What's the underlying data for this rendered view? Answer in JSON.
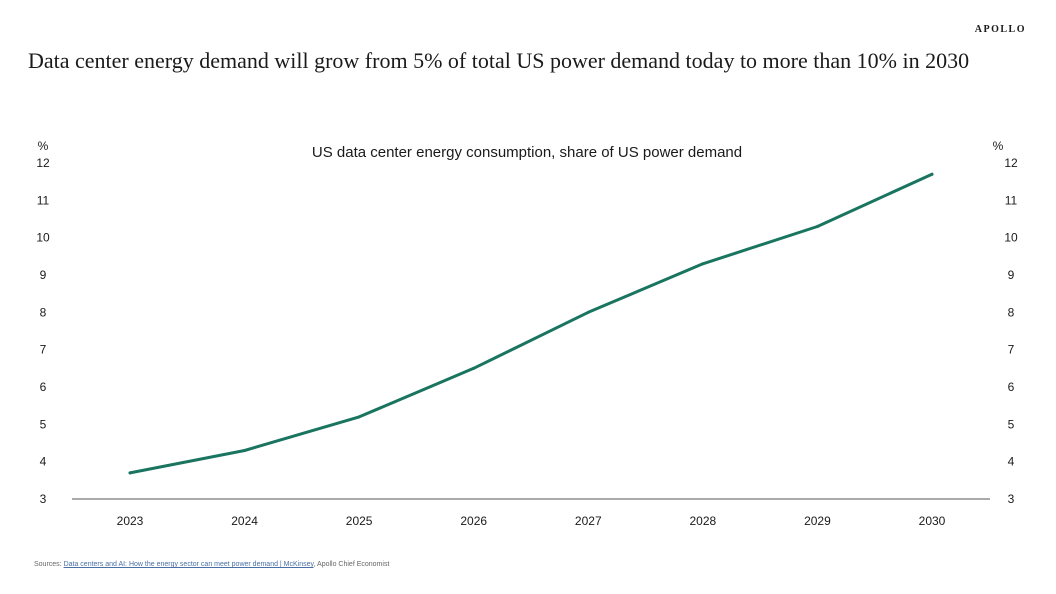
{
  "brand": "APOLLO",
  "headline": "Data center energy demand will grow from 5% of total US power demand today to more than 10% in 2030",
  "sources": {
    "prefix": "Sources: ",
    "link_text": "Data centers and AI: How the energy sector can meet power demand | McKinsey",
    "suffix": ", Apollo Chief Economist"
  },
  "colors": {
    "line": "#1a7560",
    "axis": "#555555",
    "text": "#1a1a1a"
  },
  "chart_data": {
    "type": "line",
    "title": "US data center energy consumption, share of US power demand",
    "ylabel_left": "%",
    "ylabel_right": "%",
    "ylim": [
      3,
      12
    ],
    "yticks": [
      3,
      4,
      5,
      6,
      7,
      8,
      9,
      10,
      11,
      12
    ],
    "grid": false,
    "x": [
      "2023",
      "2024",
      "2025",
      "2026",
      "2027",
      "2028",
      "2029",
      "2030"
    ],
    "series": [
      {
        "values": [
          3.7,
          4.3,
          5.2,
          6.5,
          8.0,
          9.3,
          10.3,
          11.7
        ]
      }
    ]
  }
}
